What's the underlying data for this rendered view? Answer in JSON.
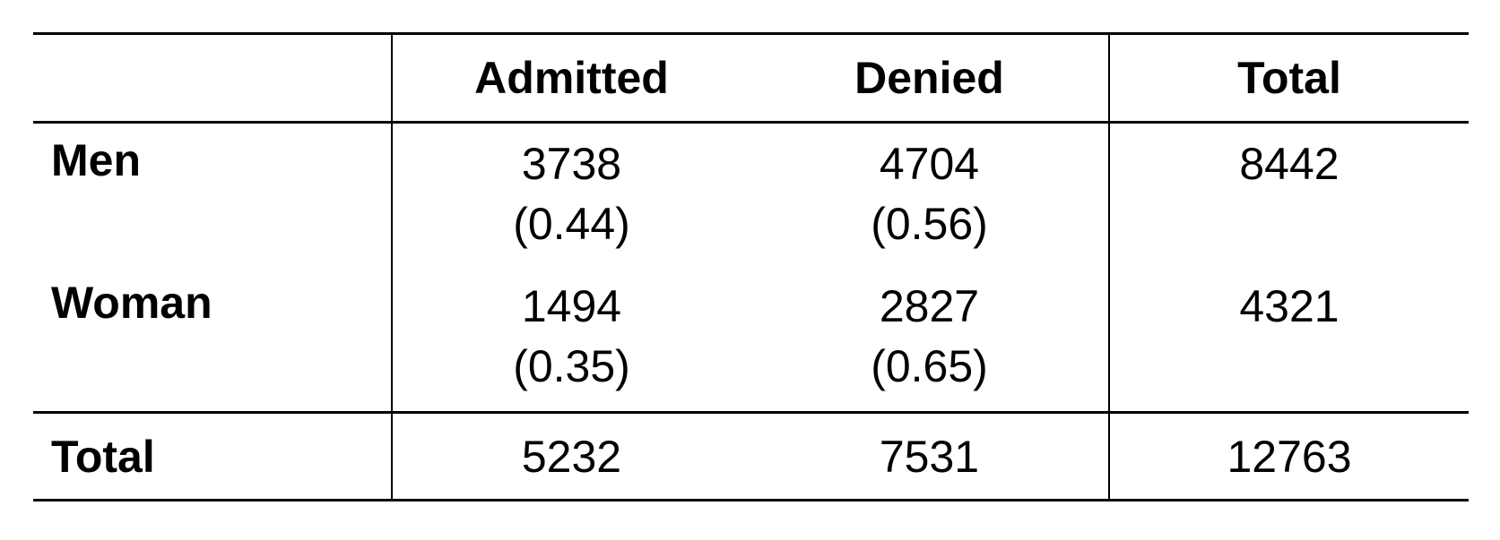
{
  "table": {
    "columns": [
      "",
      "Admitted",
      "Denied",
      "Total"
    ],
    "rows": [
      {
        "label": "Men",
        "admitted": {
          "count": "3738",
          "proportion": "(0.44)"
        },
        "denied": {
          "count": "4704",
          "proportion": "(0.56)"
        },
        "total": "8442"
      },
      {
        "label": "Woman",
        "admitted": {
          "count": "1494",
          "proportion": "(0.35)"
        },
        "denied": {
          "count": "2827",
          "proportion": "(0.65)"
        },
        "total": "4321"
      }
    ],
    "totals": {
      "label": "Total",
      "admitted": "5232",
      "denied": "7531",
      "total": "12763"
    }
  }
}
